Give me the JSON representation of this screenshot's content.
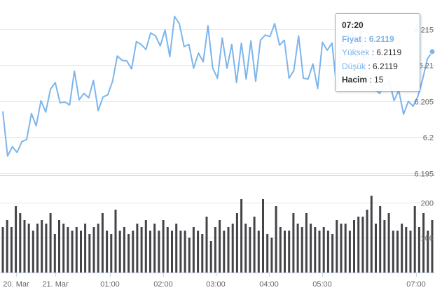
{
  "chart_data": [
    {
      "type": "line",
      "name": "price-chart",
      "series": [
        {
          "values": [
            6.2036,
            6.1974,
            6.1987,
            6.1979,
            6.1994,
            6.1997,
            6.2033,
            6.2016,
            6.2051,
            6.2035,
            6.2067,
            6.2076,
            6.2048,
            6.2049,
            6.2045,
            6.2092,
            6.2052,
            6.2061,
            6.2055,
            6.2079,
            6.2037,
            6.2056,
            6.2059,
            6.2078,
            6.2113,
            6.2107,
            6.2106,
            6.2095,
            6.2133,
            6.2129,
            6.2122,
            6.2145,
            6.2141,
            6.2127,
            6.2149,
            6.2112,
            6.2168,
            6.2158,
            6.2126,
            6.2129,
            6.2096,
            6.2117,
            6.2105,
            6.2155,
            6.2096,
            6.2082,
            6.2138,
            6.2096,
            6.2129,
            6.2076,
            6.2131,
            6.2081,
            6.2134,
            6.2078,
            6.2135,
            6.2142,
            6.214,
            6.2158,
            6.2128,
            6.2135,
            6.2082,
            6.2093,
            6.2141,
            6.2082,
            6.2081,
            6.2102,
            6.2068,
            6.2132,
            6.2121,
            6.2131,
            6.2067,
            6.213,
            6.2127,
            6.2159,
            6.2108,
            6.215,
            6.2091,
            6.2074,
            6.2066,
            6.2061,
            6.2073,
            6.2079,
            6.2051,
            6.2065,
            6.2032,
            6.205,
            6.2043,
            6.2057,
            6.2081,
            6.2109,
            6.2119
          ]
        }
      ],
      "y_ticks": [
        "6.215",
        "6.21",
        "6.205",
        "6.2",
        "6.195"
      ],
      "ylim": [
        6.1935,
        6.219
      ]
    },
    {
      "type": "bar",
      "name": "volume-chart",
      "series": [
        {
          "values": [
            13,
            15,
            13,
            19,
            17,
            15,
            14,
            12,
            14,
            15,
            14,
            17,
            11,
            15,
            14,
            13,
            12,
            13,
            12,
            14,
            11,
            13,
            14,
            17,
            12,
            11,
            18,
            12,
            13,
            11,
            12,
            14,
            13,
            15,
            12,
            14,
            12,
            15,
            13,
            12,
            14,
            12,
            12,
            10,
            13,
            12,
            11,
            16,
            9,
            13,
            15,
            12,
            13,
            14,
            17,
            21,
            14,
            13,
            16,
            12,
            21,
            11,
            10,
            19,
            13,
            12,
            12,
            17,
            14,
            13,
            17,
            14,
            13,
            12,
            13,
            12,
            11,
            15,
            14,
            14,
            12,
            15,
            16,
            16,
            18,
            22,
            14,
            19,
            15,
            17,
            12,
            12,
            14,
            13,
            12,
            19,
            13,
            17,
            12,
            15
          ]
        }
      ],
      "y_ticks": [
        "200",
        "100"
      ]
    }
  ],
  "x_axis": {
    "labels": [
      "20. Mar",
      "21. Mar",
      "01:00",
      "02:00",
      "03:00",
      "04:00",
      "05:00",
      "07:00"
    ]
  },
  "tooltip": {
    "time": "07:20",
    "price_label": "Fiyat",
    "price_value": "6.2119",
    "high_label": "Yüksek",
    "high_value": "6.2119",
    "low_label": "Düşük",
    "low_value": "6.2119",
    "volume_label": "Hacim",
    "volume_value": "15"
  },
  "colors": {
    "line": "#7cb5ec",
    "bar": "#434348",
    "grid": "#e6e6e6",
    "axis_text": "#666666"
  }
}
